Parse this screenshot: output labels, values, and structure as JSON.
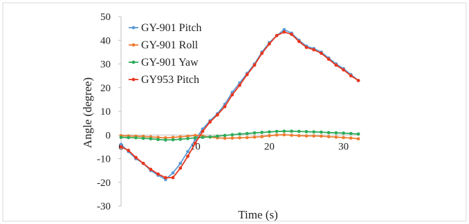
{
  "chart_data": {
    "type": "line",
    "title": "",
    "xlabel": "Time (s)",
    "ylabel": "Angle (degree)",
    "xlim": [
      0,
      32
    ],
    "ylim": [
      -30,
      50
    ],
    "x_ticks": [
      0,
      10,
      20,
      30
    ],
    "y_ticks": [
      -30,
      -20,
      -10,
      0,
      10,
      20,
      30,
      40,
      50
    ],
    "grid": false,
    "legend_position": "top-left",
    "series": [
      {
        "name": "GY-901 Pitch",
        "color": "#5b9bd5",
        "x": [
          0,
          1,
          2,
          3,
          4,
          5,
          6,
          7,
          8,
          9,
          10,
          11,
          12,
          13,
          14,
          15,
          16,
          17,
          18,
          19,
          20,
          21,
          22,
          23,
          24,
          25,
          26,
          27,
          28,
          29,
          30,
          31,
          32
        ],
        "y": [
          -4,
          -7,
          -10,
          -12,
          -15,
          -17,
          -18.8,
          -16,
          -12,
          -7,
          -2,
          2.5,
          6,
          9,
          13,
          18,
          22,
          26,
          30,
          35,
          39,
          42,
          44.5,
          43,
          40,
          37.5,
          36.5,
          35,
          32.5,
          30,
          28,
          25.5,
          23
        ]
      },
      {
        "name": "GY-901 Roll",
        "color": "#ed7d31",
        "x": [
          0,
          1,
          2,
          3,
          4,
          5,
          6,
          7,
          8,
          9,
          10,
          11,
          12,
          13,
          14,
          15,
          16,
          17,
          18,
          19,
          20,
          21,
          22,
          23,
          24,
          25,
          26,
          27,
          28,
          29,
          30,
          31,
          32
        ],
        "y": [
          -0.3,
          -0.4,
          -0.5,
          -0.6,
          -0.8,
          -1,
          -1.2,
          -1,
          -0.8,
          -0.5,
          -0.2,
          -0.4,
          -0.9,
          -1.2,
          -1.4,
          -1.3,
          -1.2,
          -1.1,
          -0.9,
          -0.7,
          -0.3,
          0,
          0.1,
          -0.1,
          -0.3,
          -0.4,
          -0.4,
          -0.5,
          -0.7,
          -0.9,
          -1.1,
          -1.3,
          -1.6
        ]
      },
      {
        "name": "GY-901 Yaw",
        "color": "#2eab5a",
        "x": [
          0,
          1,
          2,
          3,
          4,
          5,
          6,
          7,
          8,
          9,
          10,
          11,
          12,
          13,
          14,
          15,
          16,
          17,
          18,
          19,
          20,
          21,
          22,
          23,
          24,
          25,
          26,
          27,
          28,
          29,
          30,
          31,
          32
        ],
        "y": [
          -1,
          -1.1,
          -1.2,
          -1.4,
          -1.6,
          -1.9,
          -2.1,
          -2,
          -1.8,
          -1.5,
          -1.2,
          -1,
          -0.8,
          -0.5,
          -0.2,
          0.1,
          0.4,
          0.6,
          0.9,
          1.1,
          1.3,
          1.5,
          1.6,
          1.6,
          1.5,
          1.4,
          1.3,
          1.2,
          1,
          0.9,
          0.8,
          0.6,
          0.4
        ]
      },
      {
        "name": "GY953 Pitch",
        "color": "#e8361e",
        "x": [
          0,
          1,
          2,
          3,
          4,
          5,
          6,
          7,
          8,
          9,
          10,
          11,
          12,
          13,
          14,
          15,
          16,
          17,
          18,
          19,
          20,
          21,
          22,
          23,
          24,
          25,
          26,
          27,
          28,
          29,
          30,
          31,
          32
        ],
        "y": [
          -5,
          -6.5,
          -9.5,
          -12,
          -14.5,
          -16.5,
          -18,
          -18,
          -14,
          -9,
          -3.5,
          1.5,
          5.5,
          8.5,
          12,
          17,
          21,
          25.5,
          29.5,
          34.5,
          38.5,
          42,
          43.5,
          42.5,
          39.5,
          37,
          36,
          34.5,
          32,
          29.5,
          27.5,
          25,
          23
        ]
      }
    ]
  }
}
